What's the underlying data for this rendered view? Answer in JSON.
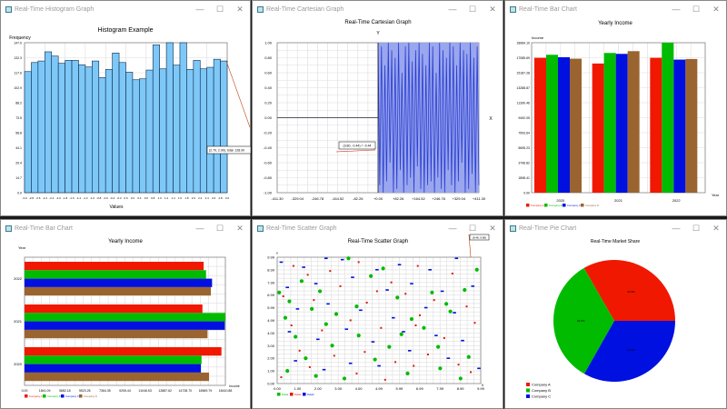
{
  "windows": [
    {
      "title": "Real-Time Histogram Graph"
    },
    {
      "title": "Real-Time Cartesian Graph"
    },
    {
      "title": "Real-Time Bar Chart"
    },
    {
      "title": "Real-Time Bar Chart"
    },
    {
      "title": "Real-Time Scatter Graph"
    },
    {
      "title": "Real-Time Pie Chart"
    }
  ],
  "window_controls": {
    "minimize": "—",
    "maximize": "☐",
    "close": "✕"
  },
  "chart_data": [
    {
      "type": "bar",
      "title": "Histogram Example",
      "xlabel": "Values",
      "ylabel": "Frequency",
      "ylim": [
        0,
        147.0
      ],
      "yticks": [
        "0.0",
        "14.7",
        "29.4",
        "44.1",
        "58.8",
        "73.5",
        "88.2",
        "102.9",
        "117.6",
        "132.3",
        "147.0"
      ],
      "xticks": [
        "-3.0",
        "-2.8",
        "-2.6",
        "-2.4",
        "-2.2",
        "-2.0",
        "-1.8",
        "-1.6",
        "-1.4",
        "-1.2",
        "-1.0",
        "-0.8",
        "-0.6",
        "-0.4",
        "-0.2",
        "0.0",
        "0.2",
        "0.4",
        "0.6",
        "0.8",
        "1.0",
        "1.2",
        "1.4",
        "1.6",
        "1.8",
        "2.0",
        "2.2",
        "2.4",
        "2.6",
        "2.8",
        "3.0"
      ],
      "values": [
        118.7,
        127.6,
        129.1,
        138.1,
        133.9,
        126.8,
        129.7,
        129.7,
        125.4,
        123.2,
        129.1,
        112.8,
        120.8,
        136.9,
        127.6,
        118.1,
        110.7,
        111.6,
        120.2,
        144.9,
        121.4,
        147,
        125,
        147,
        120.8,
        129.7,
        121.4,
        122.9,
        130.8,
        129.1
      ],
      "color": "#7ec8f8",
      "tooltip": "(2.79, 2.99), total: 128.00",
      "grid": true
    },
    {
      "type": "line",
      "title": "Real-Time Cartesian Graph",
      "xlabel": "X",
      "ylabel": "Y",
      "xlim": [
        -411.3,
        411.3
      ],
      "ylim": [
        -1.0,
        1.0
      ],
      "xticks": [
        "-411.30",
        "-329.04",
        "-246.78",
        "-164.52",
        "-82.26",
        "+0.00",
        "+82.26",
        "+164.52",
        "+246.78",
        "+329.04",
        "+411.30"
      ],
      "yticks": [
        "-1.00",
        "-0.80",
        "-0.60",
        "-0.40",
        "-0.20",
        "0.00",
        "0.20",
        "0.40",
        "0.60",
        "0.80",
        "1.00"
      ],
      "series": [
        {
          "x_start": 0,
          "x_end": 411.3,
          "y": [
            1,
            -0.9,
            0.95,
            -1,
            0.7,
            -0.85,
            1,
            -0.6,
            0.9,
            -1,
            0.8,
            -0.95,
            1,
            -0.7,
            0.6,
            -1,
            0.95,
            -0.9,
            1,
            -0.8,
            0.75,
            -1,
            0.9,
            -0.65,
            1,
            -0.95,
            0.85,
            -1,
            0.7,
            -0.9,
            1,
            -0.85,
            0.95,
            -1,
            0.6,
            -0.8,
            1,
            -0.95,
            0.9,
            -1,
            0.8,
            -0.7,
            1,
            -0.9,
            0.95,
            -1,
            0.7,
            -0.85,
            1,
            -0.6,
            0.9,
            -1,
            0.85,
            -0.95,
            1,
            -0.75,
            0.8,
            -1,
            0.95,
            -0.9
          ]
        }
      ],
      "color": "#2a3fd0",
      "tooltip": "(3.80, -0.44) = -0.44",
      "grid": true
    },
    {
      "type": "bar",
      "title": "Yearly Income",
      "xlabel": "Year",
      "ylabel": "Income",
      "ylim": [
        0,
        18984.1
      ],
      "yticks": [
        "0.00",
        "1898.41",
        "3796.82",
        "5695.23",
        "7593.64",
        "9492.05",
        "11390.46",
        "13288.87",
        "15187.28",
        "17085.69",
        "18984.10"
      ],
      "categories": [
        "2020",
        "2021",
        "2022"
      ],
      "series": [
        {
          "name": "Company A",
          "values": [
            17076,
            16350,
            17076
          ]
        },
        {
          "name": "Company B",
          "values": [
            17458,
            17687,
            18984
          ]
        },
        {
          "name": "Company C",
          "values": [
            17152,
            17572,
            16847
          ]
        },
        {
          "name": "Company D",
          "values": [
            16961,
            17917,
            16923
          ]
        }
      ],
      "colors": [
        "#f01800",
        "#00bb00",
        "#0010e0",
        "#9a6430"
      ],
      "legend": "bottom-left",
      "grid": true
    },
    {
      "type": "bar",
      "orientation": "horizontal",
      "title": "Yearly Income",
      "xlabel": "Income",
      "ylabel": "Year",
      "xlim": [
        0,
        18410.88
      ],
      "xticks": [
        "0.00",
        "1841.09",
        "3682.18",
        "5523.26",
        "7364.35",
        "9205.44",
        "11046.53",
        "12887.62",
        "14728.70",
        "16569.79",
        "18410.88"
      ],
      "categories": [
        "2020",
        "2021",
        "2022"
      ],
      "series": [
        {
          "name": "Company A",
          "values": [
            18050,
            16309,
            16419
          ]
        },
        {
          "name": "Company B",
          "values": [
            16225,
            18411,
            16640
          ]
        },
        {
          "name": "Company C",
          "values": [
            16170,
            18355,
            17191
          ]
        },
        {
          "name": "Company D",
          "values": [
            16916,
            16778,
            17081
          ]
        }
      ],
      "colors": [
        "#f01800",
        "#00bb00",
        "#0010e0",
        "#9a6430"
      ],
      "legend": "bottom-left",
      "grid": true
    },
    {
      "type": "scatter",
      "title": "Real-Time Scatter Graph",
      "xlabel": "X",
      "ylabel": "Y",
      "xlim": [
        0,
        9.99
      ],
      "ylim": [
        0,
        9.99
      ],
      "xticks": [
        "0.00",
        "1.00",
        "2.00",
        "3.00",
        "4.00",
        "4.99",
        "5.99",
        "6.99",
        "7.99",
        "8.99",
        "9.99"
      ],
      "yticks": [
        "0.00",
        "1.00",
        "2.00",
        "3.00",
        "4.00",
        "4.99",
        "5.99",
        "6.99",
        "7.99",
        "8.99",
        "9.99"
      ],
      "series": [
        {
          "name": "Data1",
          "color": "#00bb00",
          "points": [
            [
              0.1,
              7.2
            ],
            [
              0.6,
              6.5
            ],
            [
              1.2,
              8.1
            ],
            [
              2.1,
              7.3
            ],
            [
              3.5,
              9.9
            ],
            [
              4.6,
              8.5
            ],
            [
              5.2,
              9.1
            ],
            [
              7.6,
              7.2
            ],
            [
              8.3,
              6.3
            ],
            [
              9.8,
              9.0
            ],
            [
              0.4,
              5.2
            ],
            [
              1.7,
              5.9
            ],
            [
              2.9,
              5.5
            ],
            [
              3.9,
              6.1
            ],
            [
              6.6,
              5.1
            ],
            [
              7.2,
              4.4
            ],
            [
              8.5,
              5.7
            ],
            [
              0.9,
              3.7
            ],
            [
              1.4,
              2.0
            ],
            [
              2.7,
              3.0
            ],
            [
              4.0,
              3.8
            ],
            [
              5.5,
              2.9
            ],
            [
              6.1,
              3.9
            ],
            [
              7.9,
              2.9
            ],
            [
              9.4,
              2.1
            ],
            [
              0.5,
              1.0
            ],
            [
              1.9,
              0.6
            ],
            [
              3.3,
              0.4
            ],
            [
              4.8,
              1.9
            ],
            [
              6.4,
              0.8
            ],
            [
              8.0,
              1.2
            ],
            [
              9.0,
              0.4
            ],
            [
              2.4,
              4.7
            ],
            [
              5.9,
              6.8
            ],
            [
              9.2,
              7.4
            ]
          ]
        },
        {
          "name": "Data2",
          "color": "#e01810",
          "points": [
            [
              0.8,
              9.3
            ],
            [
              1.5,
              8.6
            ],
            [
              2.6,
              8.9
            ],
            [
              4.0,
              9.6
            ],
            [
              5.6,
              8.0
            ],
            [
              6.9,
              9.3
            ],
            [
              8.6,
              8.7
            ],
            [
              0.3,
              6.9
            ],
            [
              1.8,
              6.6
            ],
            [
              3.1,
              7.7
            ],
            [
              4.4,
              6.4
            ],
            [
              6.3,
              7.1
            ],
            [
              7.7,
              6.6
            ],
            [
              9.3,
              6.1
            ],
            [
              0.7,
              4.6
            ],
            [
              2.2,
              4.2
            ],
            [
              3.6,
              5.0
            ],
            [
              5.1,
              4.4
            ],
            [
              6.8,
              4.6
            ],
            [
              8.2,
              3.6
            ],
            [
              9.7,
              4.8
            ],
            [
              1.1,
              2.6
            ],
            [
              2.8,
              2.2
            ],
            [
              4.3,
              2.5
            ],
            [
              5.8,
              1.7
            ],
            [
              7.4,
              2.3
            ],
            [
              8.9,
              1.5
            ],
            [
              0.2,
              0.5
            ],
            [
              1.6,
              1.3
            ],
            [
              3.9,
              0.8
            ],
            [
              5.3,
              0.3
            ],
            [
              6.7,
              1.4
            ],
            [
              9.5,
              0.9
            ],
            [
              4.9,
              7.3
            ],
            [
              7.0,
              5.4
            ]
          ]
        },
        {
          "name": "Data3",
          "color": "#0010e0",
          "points": [
            [
              0.2,
              9.6
            ],
            [
              1.3,
              9.2
            ],
            [
              2.4,
              9.9
            ],
            [
              3.2,
              9.8
            ],
            [
              4.9,
              9.0
            ],
            [
              6.0,
              9.4
            ],
            [
              7.5,
              9.0
            ],
            [
              8.8,
              9.9
            ],
            [
              0.5,
              7.6
            ],
            [
              1.9,
              7.9
            ],
            [
              3.7,
              8.4
            ],
            [
              5.4,
              7.4
            ],
            [
              6.6,
              7.9
            ],
            [
              8.1,
              7.3
            ],
            [
              9.6,
              7.7
            ],
            [
              1.0,
              5.9
            ],
            [
              2.5,
              6.3
            ],
            [
              4.1,
              5.8
            ],
            [
              5.7,
              5.2
            ],
            [
              7.3,
              6.0
            ],
            [
              8.7,
              5.6
            ],
            [
              0.6,
              4.1
            ],
            [
              2.0,
              3.5
            ],
            [
              3.4,
              4.3
            ],
            [
              4.7,
              3.3
            ],
            [
              6.2,
              4.1
            ],
            [
              7.8,
              3.8
            ],
            [
              9.1,
              3.4
            ],
            [
              0.9,
              1.8
            ],
            [
              2.3,
              1.1
            ],
            [
              3.6,
              1.6
            ],
            [
              5.0,
              1.4
            ],
            [
              6.5,
              2.6
            ],
            [
              8.4,
              2.0
            ],
            [
              9.9,
              1.2
            ]
          ]
        }
      ],
      "tooltip": "(8.48, 9.86)",
      "legend": "bottom-left",
      "grid": true
    },
    {
      "type": "pie",
      "title": "Real-Time Market Share",
      "labels": [
        "Company A",
        "Company B",
        "Company C"
      ],
      "values": [
        33.3,
        33.5,
        33.2
      ],
      "slice_labels": [
        "33.3%",
        "33.5%",
        "33.2%"
      ],
      "colors": [
        "#f01800",
        "#00bb00",
        "#0010e0"
      ],
      "legend": "bottom-left"
    }
  ]
}
